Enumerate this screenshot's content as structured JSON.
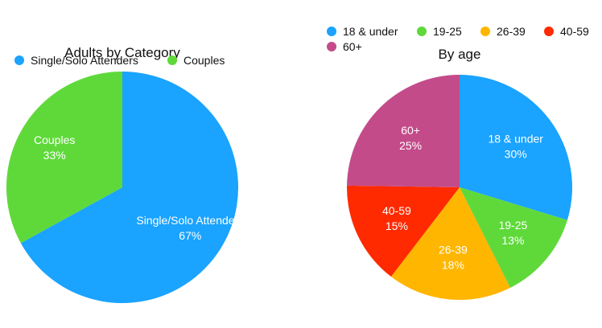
{
  "chart_data": [
    {
      "type": "pie",
      "title": "Adults by Category",
      "legend_position": "top",
      "categories": [
        "Single/Solo Attenders",
        "Couples"
      ],
      "values": [
        67,
        33
      ],
      "labels": [
        "67%",
        "33%"
      ],
      "colors": [
        "#1aa3ff",
        "#5fd93a"
      ]
    },
    {
      "type": "pie",
      "title": "By age",
      "legend_position": "top",
      "categories": [
        "18 & under",
        "19-25",
        "26-39",
        "40-59",
        "60+"
      ],
      "values": [
        30,
        13,
        18,
        15,
        25
      ],
      "labels": [
        "30%",
        "13%",
        "18%",
        "15%",
        "25%"
      ],
      "colors": [
        "#1aa3ff",
        "#5fd93a",
        "#ffb600",
        "#ff2a00",
        "#c44b8a"
      ]
    }
  ]
}
